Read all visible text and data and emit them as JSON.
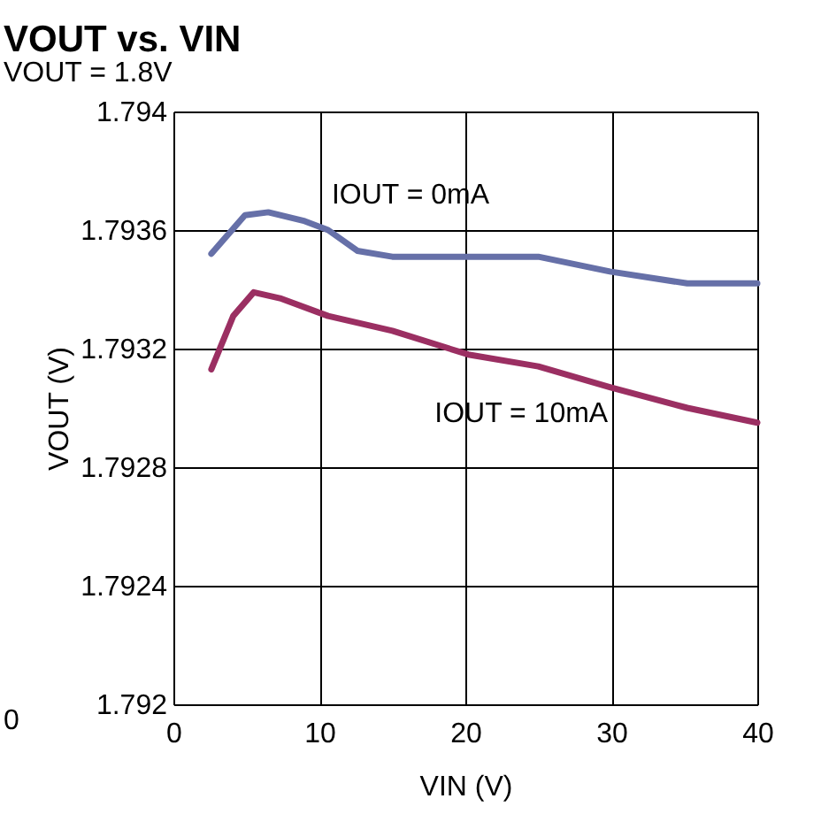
{
  "chart_data": {
    "type": "line",
    "title": "VOUT vs. VIN",
    "subtitle": "VOUT = 1.8V",
    "xlabel": "VIN (V)",
    "ylabel": "VOUT (V)",
    "xlim": [
      0,
      40
    ],
    "xticks": [
      0,
      10,
      20,
      30,
      40
    ],
    "ylim": [
      1.792,
      1.794
    ],
    "yticks": [
      {
        "value": 1.792,
        "label": "1.792"
      },
      1.7924,
      1.7928,
      1.7932,
      1.7936,
      {
        "value": 1.794,
        "label": "1.794"
      }
    ],
    "grid": true,
    "marker": "none",
    "line_style": "solid",
    "series": [
      {
        "color": "#6670a8",
        "x": [
          2.6,
          4.9,
          6.5,
          9.0,
          10.6,
          12.6,
          15,
          25,
          29.9,
          35.2,
          40
        ],
        "values": [
          1.79352,
          1.79365,
          1.79366,
          1.79363,
          1.7936,
          1.79353,
          1.79351,
          1.79351,
          1.79346,
          1.79342,
          1.79342
        ]
      },
      {
        "color": "#9b2f62",
        "x": [
          2.6,
          4.1,
          5.5,
          7.3,
          10.6,
          15,
          20.2,
          25,
          29.9,
          35.2,
          40
        ],
        "values": [
          1.79313,
          1.79331,
          1.79339,
          1.79337,
          1.79331,
          1.79326,
          1.79318,
          1.79314,
          1.79307,
          1.793,
          1.79295
        ]
      }
    ],
    "annotations": [
      {
        "text": "IOUT = 0mA",
        "x": 10.6,
        "y": 1.7936
      },
      {
        "text": "IOUT = 10mA",
        "x": 22.5,
        "y": 1.79316
      },
      "0"
    ]
  }
}
